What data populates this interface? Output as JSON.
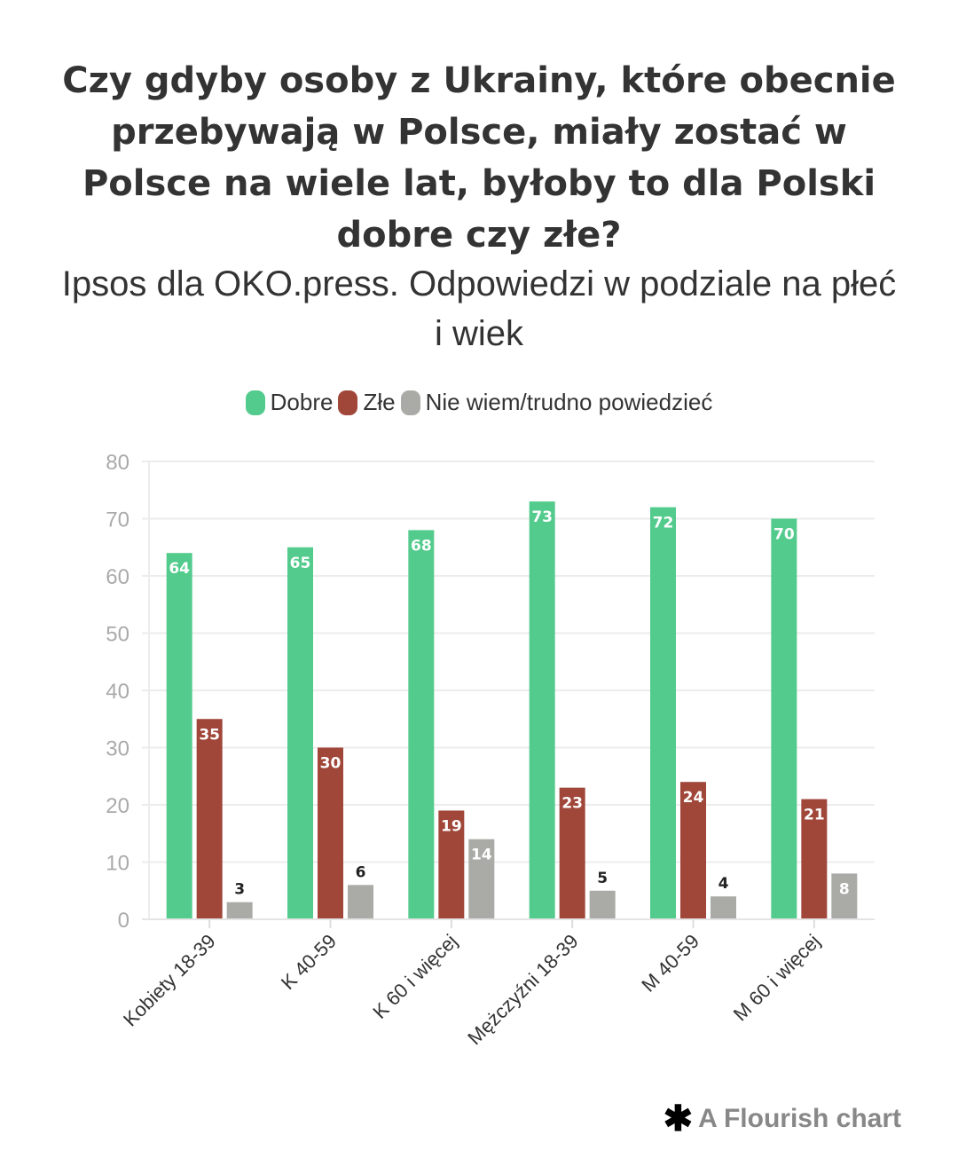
{
  "chart_data": {
    "type": "bar",
    "title": "Czy gdyby osoby z Ukrainy, które obecnie przebywają w Polsce, miały zostać w Polsce na wiele lat, byłoby to dla Polski dobre czy złe?",
    "subtitle": "Ipsos dla OKO.press. Odpowiedzi w podziale na płeć i wiek",
    "categories": [
      "Kobiety 18-39",
      "K 40-59",
      "K 60 i więcej",
      "Mężczyźni 18-39",
      "M 40-59",
      "M 60 i więcej"
    ],
    "series": [
      {
        "name": "Dobre",
        "color": "#52cb8d",
        "values": [
          64,
          65,
          68,
          73,
          72,
          70
        ]
      },
      {
        "name": "Złe",
        "color": "#a0473a",
        "values": [
          35,
          30,
          19,
          23,
          24,
          21
        ]
      },
      {
        "name": "Nie wiem/trudno powiedzieć",
        "color": "#aaaba6",
        "values": [
          3,
          6,
          14,
          5,
          4,
          8
        ]
      }
    ],
    "ylim": [
      0,
      80
    ],
    "yticks": [
      0,
      10,
      20,
      30,
      40,
      50,
      60,
      70,
      80
    ],
    "grid": true,
    "legend_position": "top-center",
    "xlabel": "",
    "ylabel": ""
  },
  "footer": {
    "label": "A Flourish chart"
  }
}
